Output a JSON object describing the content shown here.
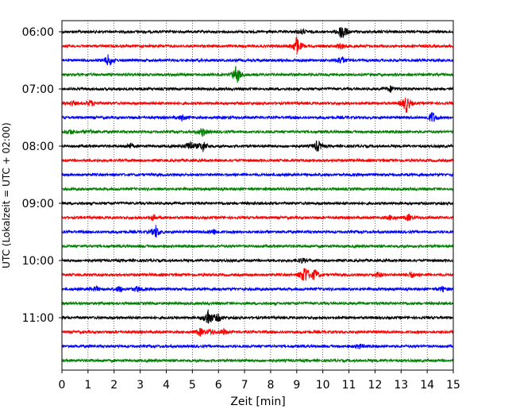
{
  "chart_data": {
    "type": "line",
    "description_kind": "helicorder seismogram",
    "xlabel": "Zeit  [min]",
    "ylabel": "UTC (Lokalzeit = UTC + 02:00)",
    "xlim": [
      0,
      15
    ],
    "x_ticks": [
      "0",
      "1",
      "2",
      "3",
      "4",
      "5",
      "6",
      "7",
      "8",
      "9",
      "10",
      "11",
      "12",
      "13",
      "14",
      "15"
    ],
    "y_tick_labels": [
      "06:00",
      "07:00",
      "08:00",
      "09:00",
      "10:00",
      "11:00"
    ],
    "grid": "vertical dotted lines at each minute",
    "trace_colors": [
      "#000000",
      "#ff0000",
      "#0000ff",
      "#008000"
    ],
    "trace_interval_min": 15,
    "traces": [
      {
        "start": "06:00",
        "color": "#000000",
        "events": [
          {
            "x": 10.75,
            "amp": 2.2
          },
          {
            "x": 9.2,
            "amp": 0.5
          }
        ]
      },
      {
        "start": "06:15",
        "color": "#ff0000",
        "events": [
          {
            "x": 9.0,
            "amp": 2.0
          },
          {
            "x": 10.7,
            "amp": 0.6
          }
        ]
      },
      {
        "start": "06:30",
        "color": "#0000ff",
        "events": [
          {
            "x": 1.8,
            "amp": 1.4
          },
          {
            "x": 10.7,
            "amp": 1.0
          }
        ]
      },
      {
        "start": "06:45",
        "color": "#008000",
        "events": [
          {
            "x": 6.7,
            "amp": 2.2
          }
        ]
      },
      {
        "start": "07:00",
        "color": "#000000",
        "events": [
          {
            "x": 12.6,
            "amp": 0.6
          }
        ]
      },
      {
        "start": "07:15",
        "color": "#ff0000",
        "events": [
          {
            "x": 13.2,
            "amp": 2.0
          },
          {
            "x": 1.1,
            "amp": 0.6
          },
          {
            "x": 0.4,
            "amp": 0.5
          }
        ]
      },
      {
        "start": "07:30",
        "color": "#0000ff",
        "events": [
          {
            "x": 14.2,
            "amp": 1.3
          },
          {
            "x": 4.6,
            "amp": 0.6
          }
        ]
      },
      {
        "start": "07:45",
        "color": "#008000",
        "events": [
          {
            "x": 5.4,
            "amp": 0.9
          },
          {
            "x": 1.1,
            "amp": 0.5
          },
          {
            "x": 0.3,
            "amp": 0.5
          }
        ]
      },
      {
        "start": "08:00",
        "color": "#000000",
        "events": [
          {
            "x": 4.9,
            "amp": 1.3
          },
          {
            "x": 5.4,
            "amp": 1.2
          },
          {
            "x": 9.8,
            "amp": 1.3
          },
          {
            "x": 2.6,
            "amp": 0.6
          }
        ]
      },
      {
        "start": "08:15",
        "color": "#ff0000",
        "events": []
      },
      {
        "start": "08:30",
        "color": "#0000ff",
        "events": []
      },
      {
        "start": "08:45",
        "color": "#008000",
        "events": []
      },
      {
        "start": "09:00",
        "color": "#000000",
        "events": []
      },
      {
        "start": "09:15",
        "color": "#ff0000",
        "events": [
          {
            "x": 3.5,
            "amp": 0.6
          },
          {
            "x": 13.3,
            "amp": 0.7
          },
          {
            "x": 12.6,
            "amp": 0.5
          }
        ]
      },
      {
        "start": "09:30",
        "color": "#0000ff",
        "events": [
          {
            "x": 3.6,
            "amp": 1.3
          },
          {
            "x": 5.8,
            "amp": 0.6
          }
        ]
      },
      {
        "start": "09:45",
        "color": "#008000",
        "events": []
      },
      {
        "start": "10:00",
        "color": "#000000",
        "events": [
          {
            "x": 9.2,
            "amp": 0.5
          }
        ]
      },
      {
        "start": "10:15",
        "color": "#ff0000",
        "events": [
          {
            "x": 9.3,
            "amp": 2.2
          },
          {
            "x": 9.7,
            "amp": 1.2
          },
          {
            "x": 12.1,
            "amp": 0.6
          },
          {
            "x": 13.4,
            "amp": 0.6
          }
        ]
      },
      {
        "start": "10:30",
        "color": "#0000ff",
        "events": [
          {
            "x": 2.2,
            "amp": 0.6
          },
          {
            "x": 2.9,
            "amp": 0.6
          },
          {
            "x": 1.3,
            "amp": 0.5
          },
          {
            "x": 14.6,
            "amp": 0.5
          }
        ]
      },
      {
        "start": "10:45",
        "color": "#008000",
        "events": []
      },
      {
        "start": "11:00",
        "color": "#000000",
        "events": [
          {
            "x": 5.6,
            "amp": 2.0
          },
          {
            "x": 6.0,
            "amp": 0.8
          }
        ]
      },
      {
        "start": "11:15",
        "color": "#ff0000",
        "events": [
          {
            "x": 5.3,
            "amp": 0.8
          },
          {
            "x": 5.7,
            "amp": 0.6
          },
          {
            "x": 6.2,
            "amp": 0.6
          }
        ]
      },
      {
        "start": "11:30",
        "color": "#0000ff",
        "events": [
          {
            "x": 11.4,
            "amp": 0.5
          }
        ]
      },
      {
        "start": "11:45",
        "color": "#008000",
        "events": []
      }
    ]
  }
}
